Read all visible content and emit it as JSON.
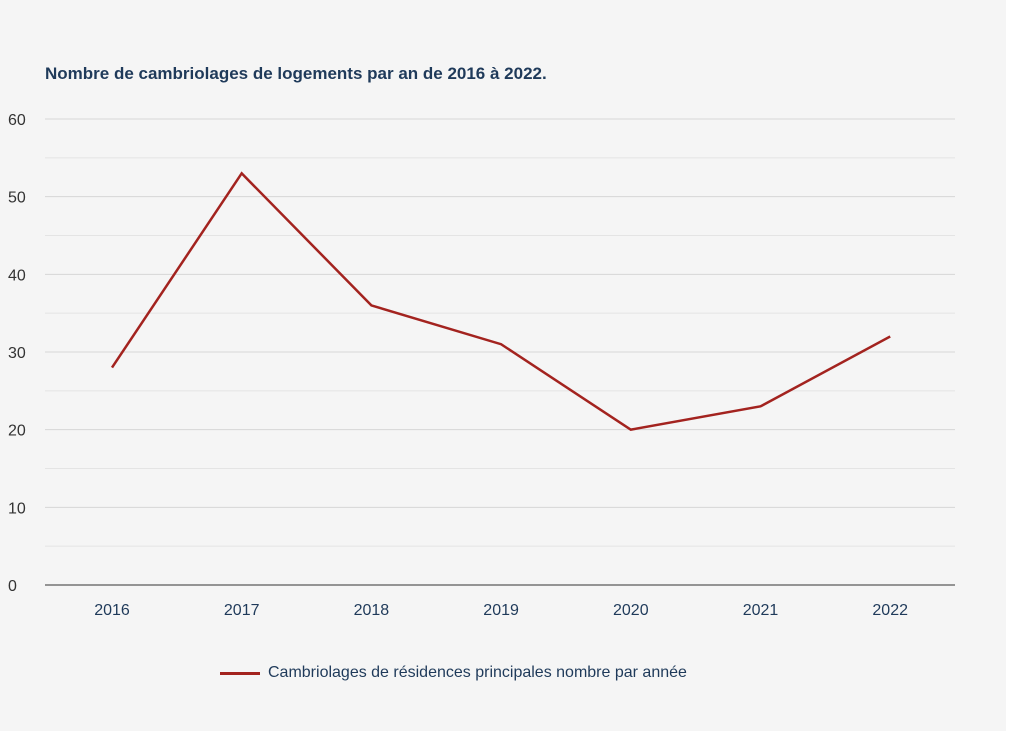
{
  "chart_data": {
    "type": "line",
    "title": "Nombre de cambriolages de logements par an de 2016 à 2022.",
    "xlabel": "",
    "ylabel": "",
    "categories": [
      "2016",
      "2017",
      "2018",
      "2019",
      "2020",
      "2021",
      "2022"
    ],
    "series": [
      {
        "name": "Cambriolages de résidences principales nombre par année",
        "values": [
          28,
          53,
          36,
          31,
          20,
          23,
          32
        ],
        "color": "#a3231f"
      }
    ],
    "ylim": [
      0,
      60
    ],
    "yticks": [
      "0",
      "10",
      "20",
      "30",
      "40",
      "50",
      "60"
    ],
    "grid": true,
    "legend_position": "bottom",
    "colors": {
      "background": "#f5f5f5",
      "title": "#1f3a5a",
      "grid": "#d6d6d6",
      "axis": "#333333"
    }
  }
}
